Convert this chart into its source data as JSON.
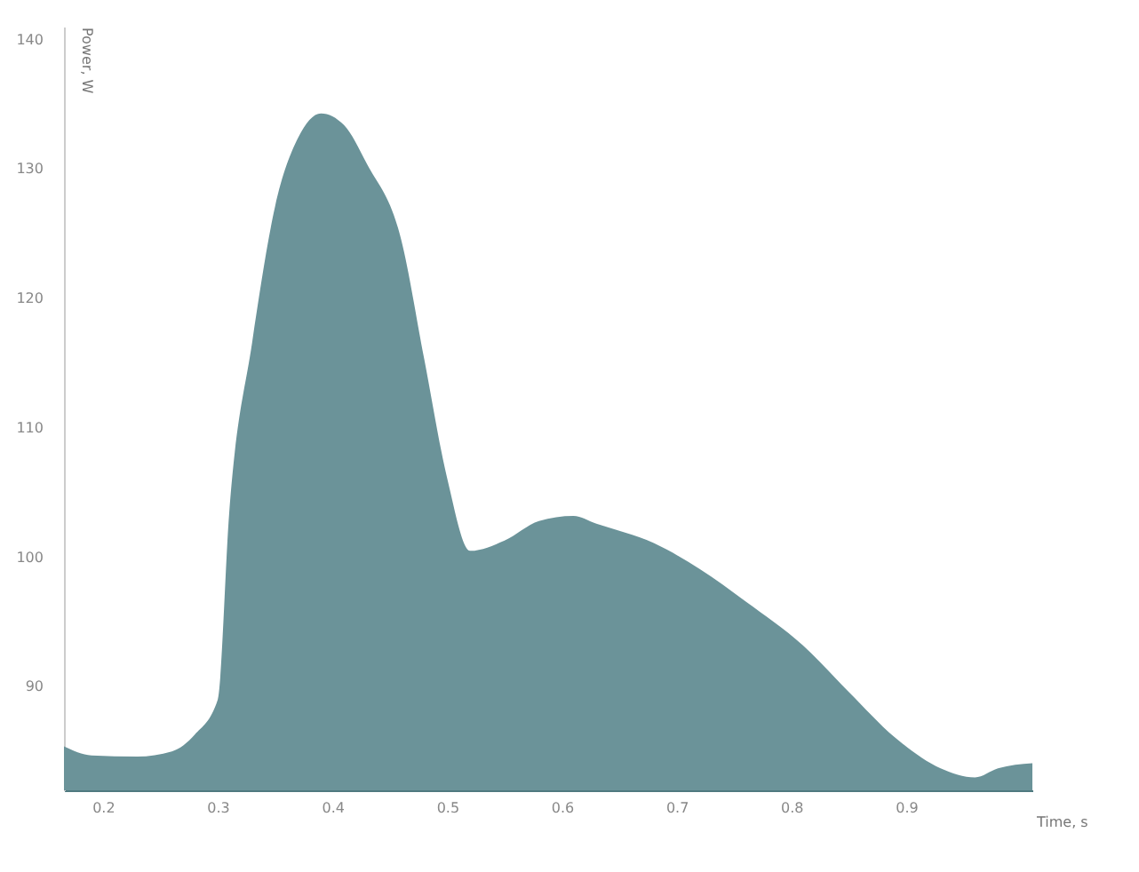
{
  "chart_data": {
    "type": "area",
    "xlabel": "Time, s",
    "ylabel": "Power, W",
    "color": "#6b9399",
    "x": [
      0.166,
      0.19,
      0.23,
      0.26,
      0.28,
      0.3,
      0.31,
      0.33,
      0.35,
      0.37,
      0.39,
      0.41,
      0.43,
      0.46,
      0.48,
      0.5,
      0.52,
      0.55,
      0.58,
      0.61,
      0.63,
      0.68,
      0.72,
      0.76,
      0.81,
      0.85,
      0.89,
      0.93,
      0.96,
      0.98,
      1.01
    ],
    "values": [
      85.4,
      84.7,
      84.6,
      85,
      86.3,
      89,
      103.4,
      116.6,
      127.1,
      132.4,
      134.3,
      133.4,
      130.4,
      124.5,
      115.3,
      106.1,
      100.5,
      101.3,
      102.8,
      103.2,
      102.6,
      101.1,
      99.1,
      96.6,
      93.2,
      89.6,
      86.1,
      83.7,
      83,
      83.7,
      84.1
    ],
    "xlim": [
      0.166,
      1.01
    ],
    "xticks": [
      0.2,
      0.3,
      0.4,
      0.5,
      0.6,
      0.7,
      0.8,
      0.9
    ],
    "ylim": [
      82,
      141
    ],
    "yticks": [
      90,
      100,
      110,
      120,
      130,
      140
    ],
    "grid": false
  }
}
